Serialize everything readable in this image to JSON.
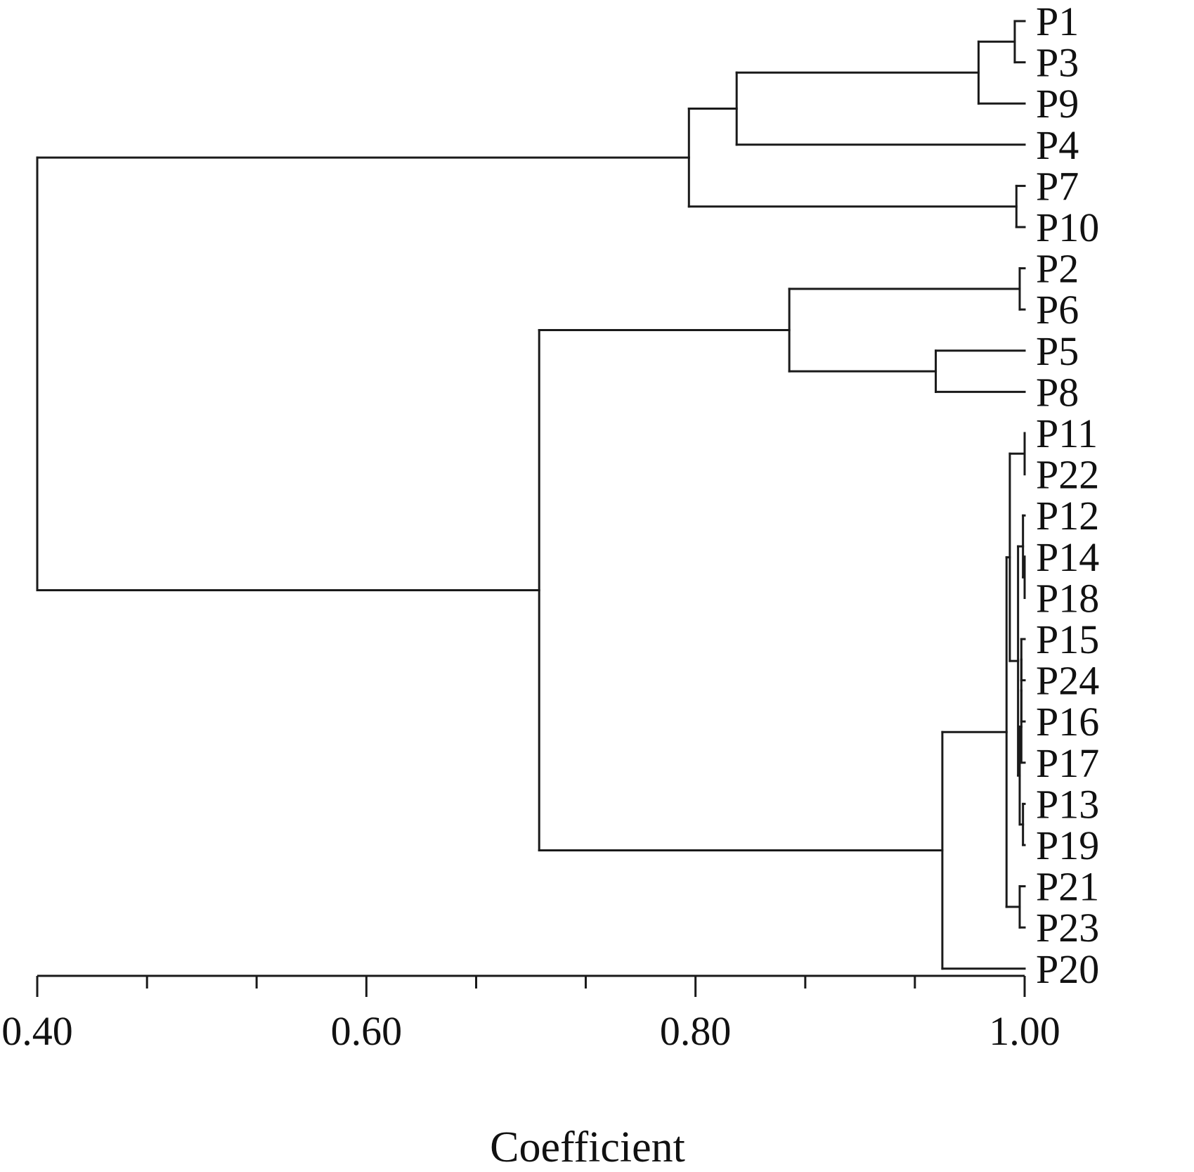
{
  "chart_data": {
    "type": "dendrogram",
    "xlabel": "Coefficient",
    "xlim": [
      0.4,
      1.0
    ],
    "major_ticks": [
      0.4,
      0.6,
      0.8,
      1.0
    ],
    "tick_labels": [
      "0.40",
      "0.60",
      "0.80",
      "1.00"
    ],
    "minor_ticks": [
      0.4667,
      0.5333,
      0.6667,
      0.7333,
      0.8667,
      0.9333
    ],
    "leaves": [
      "P1",
      "P3",
      "P9",
      "P4",
      "P7",
      "P10",
      "P2",
      "P6",
      "P5",
      "P8",
      "P11",
      "P22",
      "P12",
      "P14",
      "P18",
      "P15",
      "P24",
      "P16",
      "P17",
      "P13",
      "P19",
      "P21",
      "P23",
      "P20"
    ],
    "merges": [
      {
        "id": "a",
        "children": [
          "P1",
          "P3"
        ],
        "height": 0.994
      },
      {
        "id": "b",
        "children": [
          "a",
          "P9"
        ],
        "height": 0.972
      },
      {
        "id": "c",
        "children": [
          "b",
          "P4"
        ],
        "height": 0.825
      },
      {
        "id": "d",
        "children": [
          "P7",
          "P10"
        ],
        "height": 0.995
      },
      {
        "id": "e",
        "children": [
          "c",
          "d"
        ],
        "height": 0.796
      },
      {
        "id": "f",
        "children": [
          "P2",
          "P6"
        ],
        "height": 0.997
      },
      {
        "id": "g",
        "children": [
          "P5",
          "P8"
        ],
        "height": 0.946
      },
      {
        "id": "h",
        "children": [
          "f",
          "g"
        ],
        "height": 0.857
      },
      {
        "id": "i",
        "children": [
          "P11",
          "P22"
        ],
        "height": 1.0
      },
      {
        "id": "j",
        "children": [
          "P14",
          "P18"
        ],
        "height": 1.0
      },
      {
        "id": "k",
        "children": [
          "P12",
          "j"
        ],
        "height": 0.999
      },
      {
        "id": "l",
        "children": [
          "P15",
          "P24"
        ],
        "height": 0.998
      },
      {
        "id": "m",
        "children": [
          "l",
          "P16"
        ],
        "height": 0.998
      },
      {
        "id": "n",
        "children": [
          "m",
          "P17"
        ],
        "height": 0.998
      },
      {
        "id": "o",
        "children": [
          "P13",
          "P19"
        ],
        "height": 0.999
      },
      {
        "id": "p",
        "children": [
          "n",
          "o"
        ],
        "height": 0.997
      },
      {
        "id": "q",
        "children": [
          "k",
          "p"
        ],
        "height": 0.996
      },
      {
        "id": "r",
        "children": [
          "i",
          "q"
        ],
        "height": 0.991
      },
      {
        "id": "s",
        "children": [
          "P21",
          "P23"
        ],
        "height": 0.997
      },
      {
        "id": "t",
        "children": [
          "r",
          "s"
        ],
        "height": 0.989
      },
      {
        "id": "u",
        "children": [
          "t",
          "P20"
        ],
        "height": 0.95
      },
      {
        "id": "v",
        "children": [
          "h",
          "u"
        ],
        "height": 0.705
      },
      {
        "id": "w",
        "children": [
          "e",
          "v"
        ],
        "height": 0.4
      }
    ]
  }
}
